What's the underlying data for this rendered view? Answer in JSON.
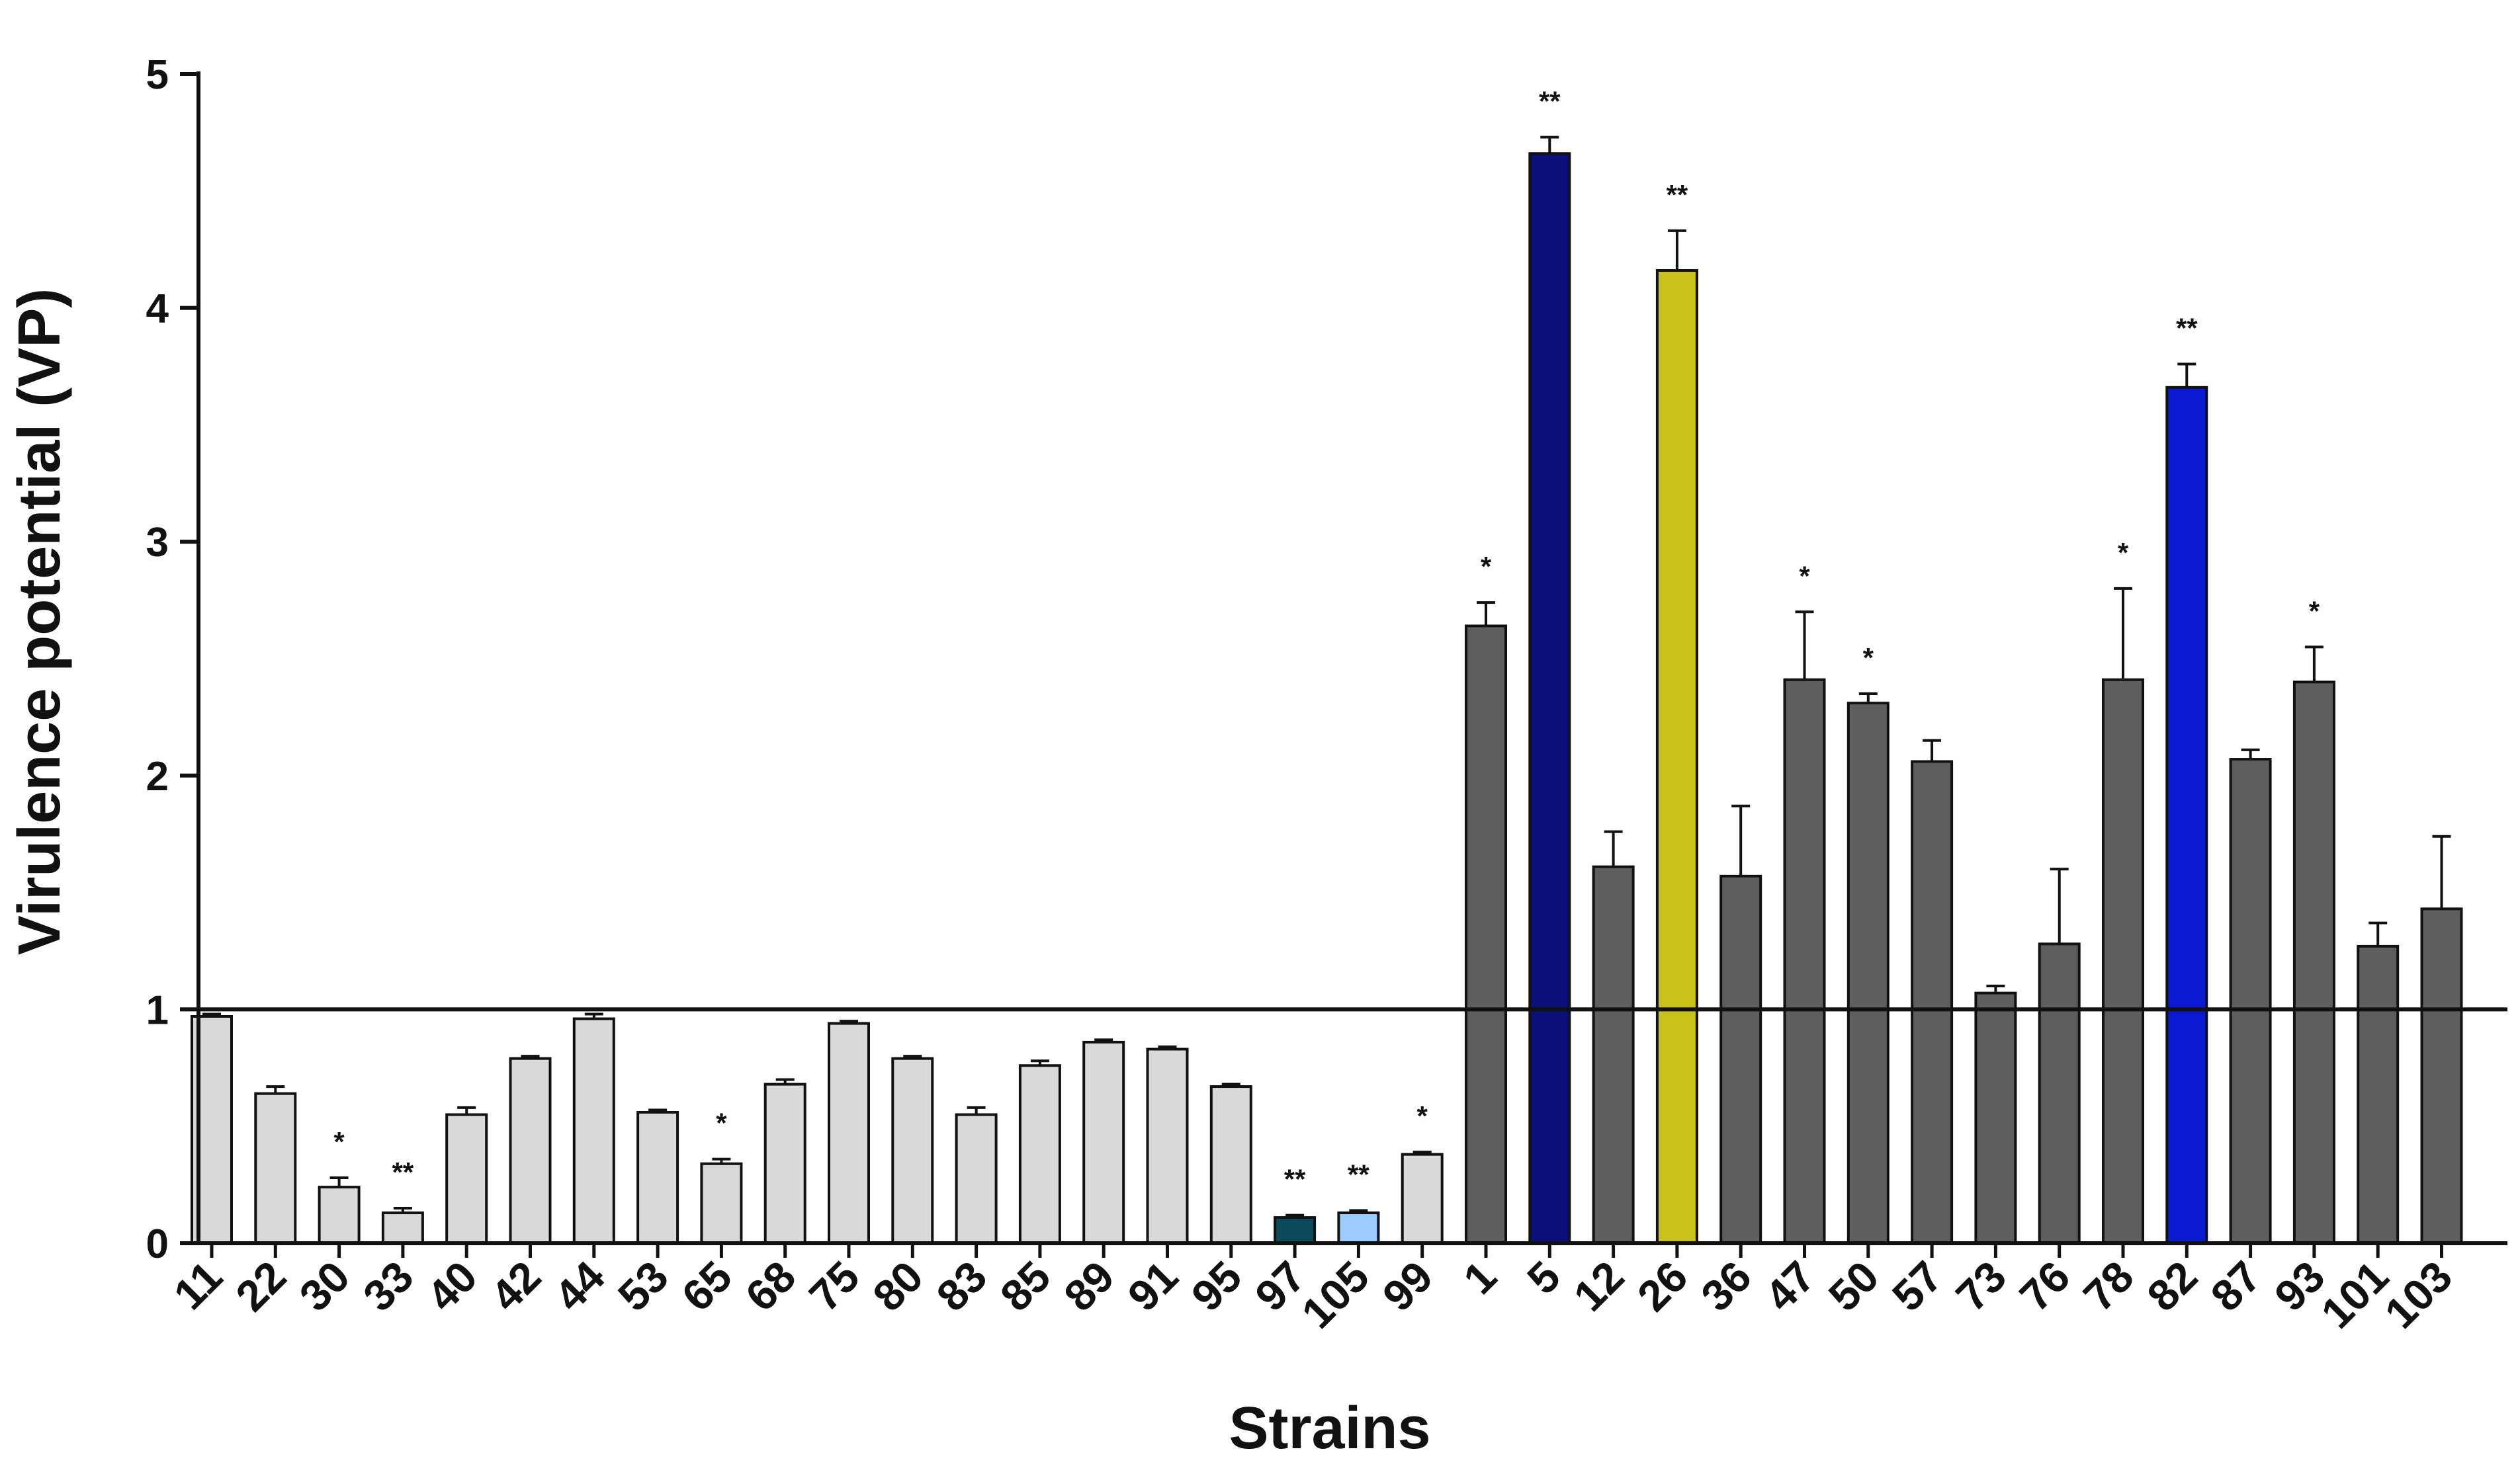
{
  "chart_data": {
    "type": "bar",
    "title": "",
    "xlabel": "Strains",
    "ylabel": "Virulence potential (VP)",
    "ylim": [
      0,
      5
    ],
    "yticks": [
      0,
      1,
      2,
      3,
      4,
      5
    ],
    "reference_line": 1,
    "grid": false,
    "legend": "none",
    "categories": [
      "11",
      "22",
      "30",
      "33",
      "40",
      "42",
      "44",
      "53",
      "65",
      "68",
      "75",
      "80",
      "83",
      "85",
      "89",
      "91",
      "95",
      "97",
      "105",
      "99",
      "1",
      "5",
      "12",
      "26",
      "36",
      "47",
      "50",
      "57",
      "73",
      "76",
      "78",
      "82",
      "87",
      "93",
      "101",
      "103"
    ],
    "values": [
      0.97,
      0.64,
      0.24,
      0.13,
      0.55,
      0.79,
      0.96,
      0.56,
      0.34,
      0.68,
      0.94,
      0.79,
      0.55,
      0.76,
      0.86,
      0.83,
      0.67,
      0.11,
      0.13,
      0.38,
      2.64,
      4.66,
      1.61,
      4.16,
      1.57,
      2.41,
      2.31,
      2.06,
      1.07,
      1.28,
      2.41,
      3.66,
      2.07,
      2.4,
      1.27,
      1.43
    ],
    "errors": [
      0.01,
      0.03,
      0.04,
      0.02,
      0.03,
      0.01,
      0.02,
      0.01,
      0.02,
      0.02,
      0.01,
      0.01,
      0.03,
      0.02,
      0.01,
      0.01,
      0.01,
      0.01,
      0.01,
      0.01,
      0.1,
      0.07,
      0.15,
      0.17,
      0.3,
      0.29,
      0.04,
      0.09,
      0.03,
      0.32,
      0.39,
      0.1,
      0.04,
      0.15,
      0.1,
      0.31
    ],
    "significance": [
      "",
      "",
      "*",
      "**",
      "",
      "",
      "",
      "",
      "*",
      "",
      "",
      "",
      "",
      "",
      "",
      "",
      "",
      "**",
      "**",
      "*",
      "*",
      "**",
      "",
      "**",
      "",
      "*",
      "*",
      "",
      "",
      "",
      "*",
      "**",
      "",
      "*",
      "",
      ""
    ],
    "colors": {
      "low_group": "#d9d9d9",
      "high_group": "#5e5e5e",
      "strain_97": "#0b4a5a",
      "strain_105": "#9ccbff",
      "strain_5": "#0a0f7a",
      "strain_26": "#c8c21a",
      "strain_82": "#0b1ad0",
      "axis": "#111111"
    },
    "bar_colors": [
      "#d9d9d9",
      "#d9d9d9",
      "#d9d9d9",
      "#d9d9d9",
      "#d9d9d9",
      "#d9d9d9",
      "#d9d9d9",
      "#d9d9d9",
      "#d9d9d9",
      "#d9d9d9",
      "#d9d9d9",
      "#d9d9d9",
      "#d9d9d9",
      "#d9d9d9",
      "#d9d9d9",
      "#d9d9d9",
      "#d9d9d9",
      "#0b4a5a",
      "#9ccbff",
      "#d9d9d9",
      "#5e5e5e",
      "#0a0f7a",
      "#5e5e5e",
      "#c8c21a",
      "#5e5e5e",
      "#5e5e5e",
      "#5e5e5e",
      "#5e5e5e",
      "#5e5e5e",
      "#5e5e5e",
      "#5e5e5e",
      "#0b1ad0",
      "#5e5e5e",
      "#5e5e5e",
      "#5e5e5e",
      "#5e5e5e"
    ]
  }
}
